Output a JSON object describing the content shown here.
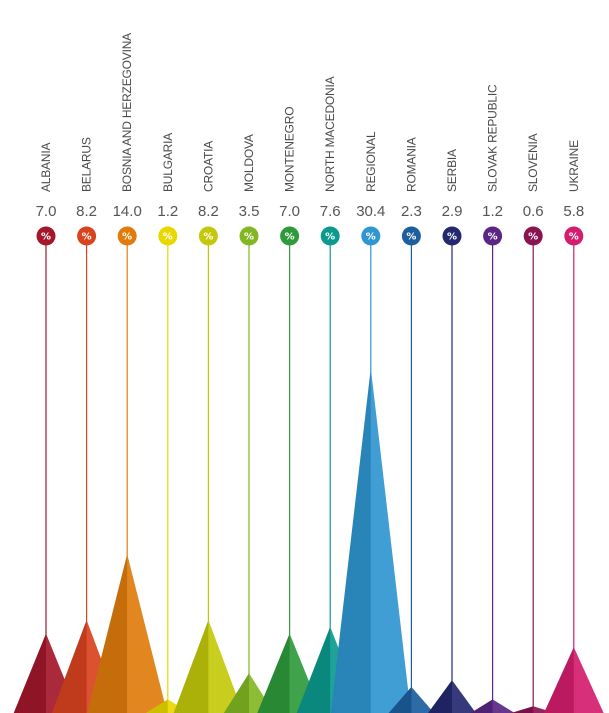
{
  "chart_data": {
    "type": "bar",
    "title": "",
    "xlabel": "",
    "ylabel": "",
    "unit_symbol": "%",
    "ylim": [
      0,
      30.4
    ],
    "categories": [
      "ALBANIA",
      "BELARUS",
      "BOSNIA AND HERZEGOVINA",
      "BULGARIA",
      "CROATIA",
      "MOLDOVA",
      "MONTENEGRO",
      "NORTH MACEDONIA",
      "REGIONAL",
      "ROMANIA",
      "SERBIA",
      "SLOVAK REPUBLIC",
      "SLOVENIA",
      "UKRAINE"
    ],
    "values": [
      7.0,
      8.2,
      14.0,
      1.2,
      8.2,
      3.5,
      7.0,
      7.6,
      30.4,
      2.3,
      2.9,
      1.2,
      0.6,
      5.8
    ],
    "value_labels": [
      "7.0",
      "8.2",
      "14.0",
      "1.2",
      "8.2",
      "3.5",
      "7.0",
      "7.6",
      "30.4",
      "2.3",
      "2.9",
      "1.2",
      "0.6",
      "5.8"
    ],
    "colors": [
      "#a3182b",
      "#d9431f",
      "#e07b0c",
      "#e9d800",
      "#c3c90a",
      "#82b723",
      "#2f9a3a",
      "#0c9a8e",
      "#2f96d0",
      "#1c5e9e",
      "#24286f",
      "#5a2585",
      "#8a1352",
      "#d41d6e"
    ],
    "grid": false,
    "legend": "none"
  }
}
